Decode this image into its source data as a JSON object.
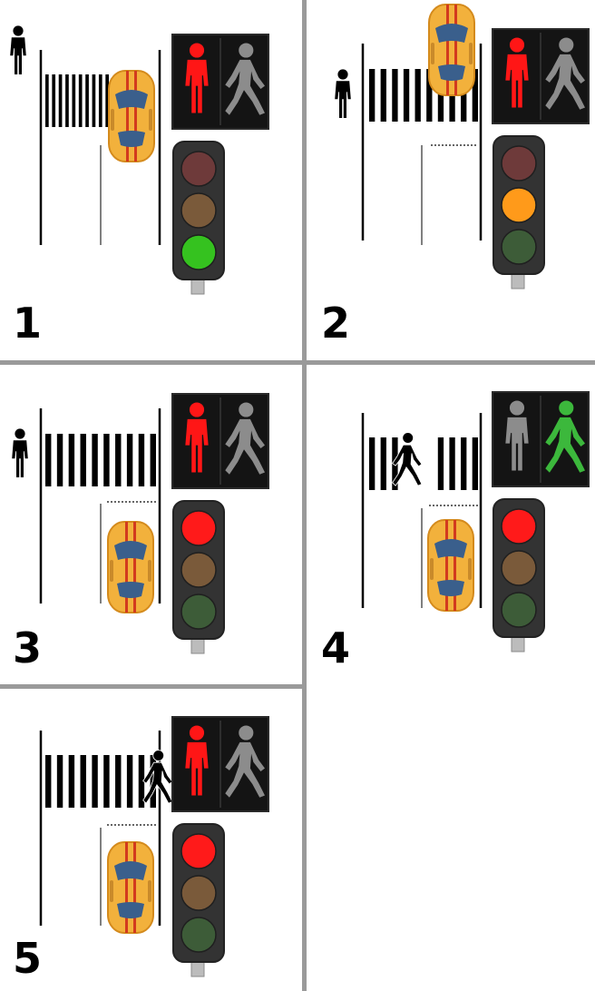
{
  "panels": [
    {
      "number": "1",
      "car_light": "green",
      "ped_light": "red-stand",
      "pedestrian": "waiting-left",
      "car_position": "on-crossing"
    },
    {
      "number": "2",
      "car_light": "amber",
      "ped_light": "red-stand",
      "pedestrian": "waiting-left",
      "car_position": "past-crossing"
    },
    {
      "number": "3",
      "car_light": "red",
      "ped_light": "red-stand",
      "pedestrian": "waiting-left",
      "car_position": "stopped-at-line"
    },
    {
      "number": "4",
      "car_light": "red",
      "ped_light": "green-walk",
      "pedestrian": "crossing-middle",
      "car_position": "stopped-at-line"
    },
    {
      "number": "5",
      "car_light": "red",
      "ped_light": "red-stand",
      "pedestrian": "finishing-right",
      "car_position": "stopped-at-line"
    }
  ],
  "colors": {
    "divider": "#9a9a9a",
    "lamp_red_on": "#ff1a1a",
    "lamp_amber_on": "#ff9a1a",
    "lamp_green_on": "#35c21f",
    "lamp_red_off": "#6e3a3a",
    "lamp_amber_off": "#7a5a3a",
    "lamp_green_off": "#3d5c38",
    "walk_green": "#3cb83c",
    "stand_red": "#ff1616",
    "figure_off": "#8c8c8c",
    "car_body": "#f2b13c",
    "car_stripe": "#d23a1e",
    "car_glass": "#3a5f8c"
  }
}
